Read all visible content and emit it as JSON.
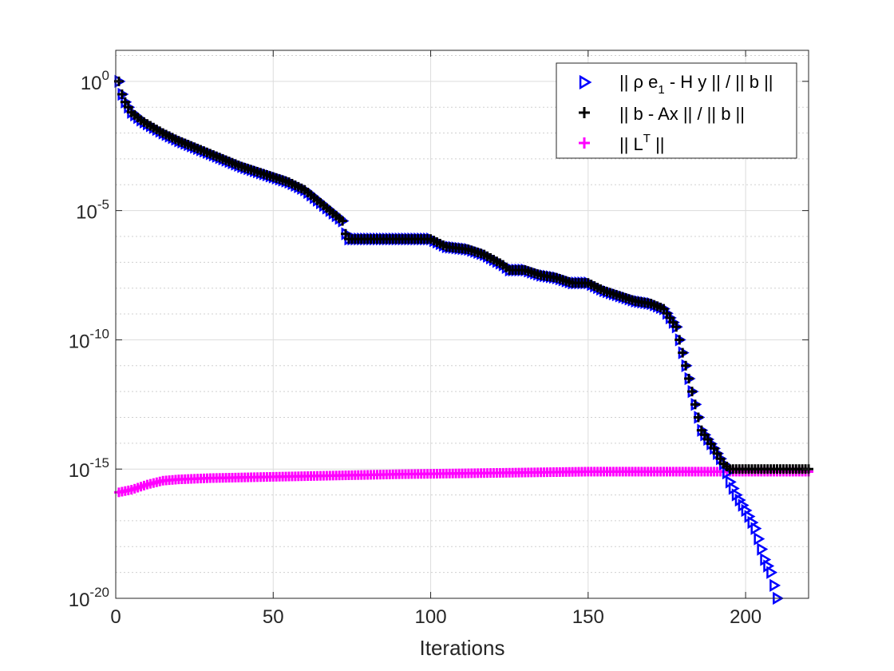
{
  "chart_data": {
    "type": "scatter",
    "xlabel": "Iterations",
    "ylabel": "",
    "title": "",
    "xlim": [
      0,
      220
    ],
    "ylim_exponent": [
      -20,
      1.2
    ],
    "yscale": "log",
    "x_ticks": [
      0,
      50,
      100,
      150,
      200
    ],
    "x_tick_labels": [
      "0",
      "50",
      "100",
      "150",
      "200"
    ],
    "y_ticks_exponent": [
      0,
      -5,
      -10,
      -15,
      -20
    ],
    "y_tick_labels": [
      {
        "base": "10",
        "exp": "0"
      },
      {
        "base": "10",
        "exp": "-5"
      },
      {
        "base": "10",
        "exp": "-10"
      },
      {
        "base": "10",
        "exp": "-15"
      },
      {
        "base": "10",
        "exp": "-20"
      }
    ],
    "grid": true,
    "minor_grid": true,
    "legend_position": "top-right",
    "series": [
      {
        "name": "|| ρ e1 - H y || / || b ||",
        "legend_parts": {
          "pre": "|| ρ e",
          "sub": "1",
          "post": " - H y || / || b ||"
        },
        "marker": "triangle-right",
        "color": "#0000ff",
        "log10_profile": [
          [
            1,
            0
          ],
          [
            2,
            -0.5
          ],
          [
            3,
            -0.8
          ],
          [
            5,
            -1.2
          ],
          [
            8,
            -1.5
          ],
          [
            10,
            -1.65
          ],
          [
            15,
            -2
          ],
          [
            20,
            -2.3
          ],
          [
            30,
            -2.8
          ],
          [
            40,
            -3.3
          ],
          [
            50,
            -3.7
          ],
          [
            55,
            -3.9
          ],
          [
            60,
            -4.2
          ],
          [
            65,
            -4.7
          ],
          [
            70,
            -5.2
          ],
          [
            72,
            -5.4
          ],
          [
            73,
            -5.9
          ],
          [
            74,
            -6.1
          ],
          [
            80,
            -6.1
          ],
          [
            90,
            -6.1
          ],
          [
            100,
            -6.1
          ],
          [
            105,
            -6.4
          ],
          [
            112,
            -6.5
          ],
          [
            117,
            -6.7
          ],
          [
            120,
            -6.9
          ],
          [
            123,
            -7.1
          ],
          [
            125,
            -7.3
          ],
          [
            130,
            -7.3
          ],
          [
            135,
            -7.5
          ],
          [
            140,
            -7.6
          ],
          [
            145,
            -7.8
          ],
          [
            150,
            -7.8
          ],
          [
            155,
            -8.1
          ],
          [
            160,
            -8.3
          ],
          [
            165,
            -8.5
          ],
          [
            170,
            -8.6
          ],
          [
            174,
            -8.8
          ],
          [
            178,
            -9.5
          ],
          [
            180,
            -10.5
          ],
          [
            183,
            -12
          ],
          [
            186,
            -13.5
          ],
          [
            190,
            -14.2
          ],
          [
            193,
            -14.8
          ],
          [
            195,
            -15.5
          ],
          [
            197,
            -16
          ],
          [
            200,
            -16.6
          ],
          [
            203,
            -17.3
          ],
          [
            206,
            -18.5
          ],
          [
            208,
            -19
          ],
          [
            210,
            -20
          ]
        ]
      },
      {
        "name": "|| b - Ax || / || b ||",
        "legend_parts": {
          "pre": " || b - Ax || / || b ||",
          "sub": "",
          "post": ""
        },
        "marker": "plus",
        "color": "#000000",
        "log10_profile": [
          [
            1,
            0
          ],
          [
            2,
            -0.5
          ],
          [
            3,
            -0.8
          ],
          [
            5,
            -1.2
          ],
          [
            8,
            -1.5
          ],
          [
            10,
            -1.65
          ],
          [
            15,
            -2
          ],
          [
            20,
            -2.3
          ],
          [
            30,
            -2.8
          ],
          [
            40,
            -3.3
          ],
          [
            50,
            -3.7
          ],
          [
            55,
            -3.9
          ],
          [
            60,
            -4.2
          ],
          [
            65,
            -4.7
          ],
          [
            70,
            -5.2
          ],
          [
            72,
            -5.4
          ],
          [
            73,
            -5.9
          ],
          [
            74,
            -6.1
          ],
          [
            80,
            -6.1
          ],
          [
            90,
            -6.1
          ],
          [
            100,
            -6.1
          ],
          [
            105,
            -6.4
          ],
          [
            112,
            -6.5
          ],
          [
            117,
            -6.7
          ],
          [
            120,
            -6.9
          ],
          [
            123,
            -7.1
          ],
          [
            125,
            -7.3
          ],
          [
            130,
            -7.3
          ],
          [
            135,
            -7.5
          ],
          [
            140,
            -7.6
          ],
          [
            145,
            -7.8
          ],
          [
            150,
            -7.8
          ],
          [
            155,
            -8.1
          ],
          [
            160,
            -8.3
          ],
          [
            165,
            -8.5
          ],
          [
            170,
            -8.6
          ],
          [
            174,
            -8.8
          ],
          [
            178,
            -9.5
          ],
          [
            180,
            -10.5
          ],
          [
            183,
            -12
          ],
          [
            186,
            -13.5
          ],
          [
            190,
            -14.2
          ],
          [
            193,
            -14.8
          ],
          [
            195,
            -15
          ],
          [
            200,
            -15
          ],
          [
            210,
            -15
          ],
          [
            220,
            -15
          ]
        ]
      },
      {
        "name": "|| L^T ||",
        "legend_parts": {
          "pre": "|| L",
          "sup": "T",
          "post": " ||"
        },
        "marker": "plus",
        "color": "#ff00ff",
        "log10_profile": [
          [
            1,
            -15.9
          ],
          [
            5,
            -15.8
          ],
          [
            10,
            -15.6
          ],
          [
            15,
            -15.45
          ],
          [
            20,
            -15.4
          ],
          [
            30,
            -15.35
          ],
          [
            50,
            -15.3
          ],
          [
            70,
            -15.25
          ],
          [
            90,
            -15.2
          ],
          [
            120,
            -15.15
          ],
          [
            150,
            -15.1
          ],
          [
            200,
            -15.1
          ],
          [
            220,
            -15.1
          ]
        ]
      }
    ]
  }
}
